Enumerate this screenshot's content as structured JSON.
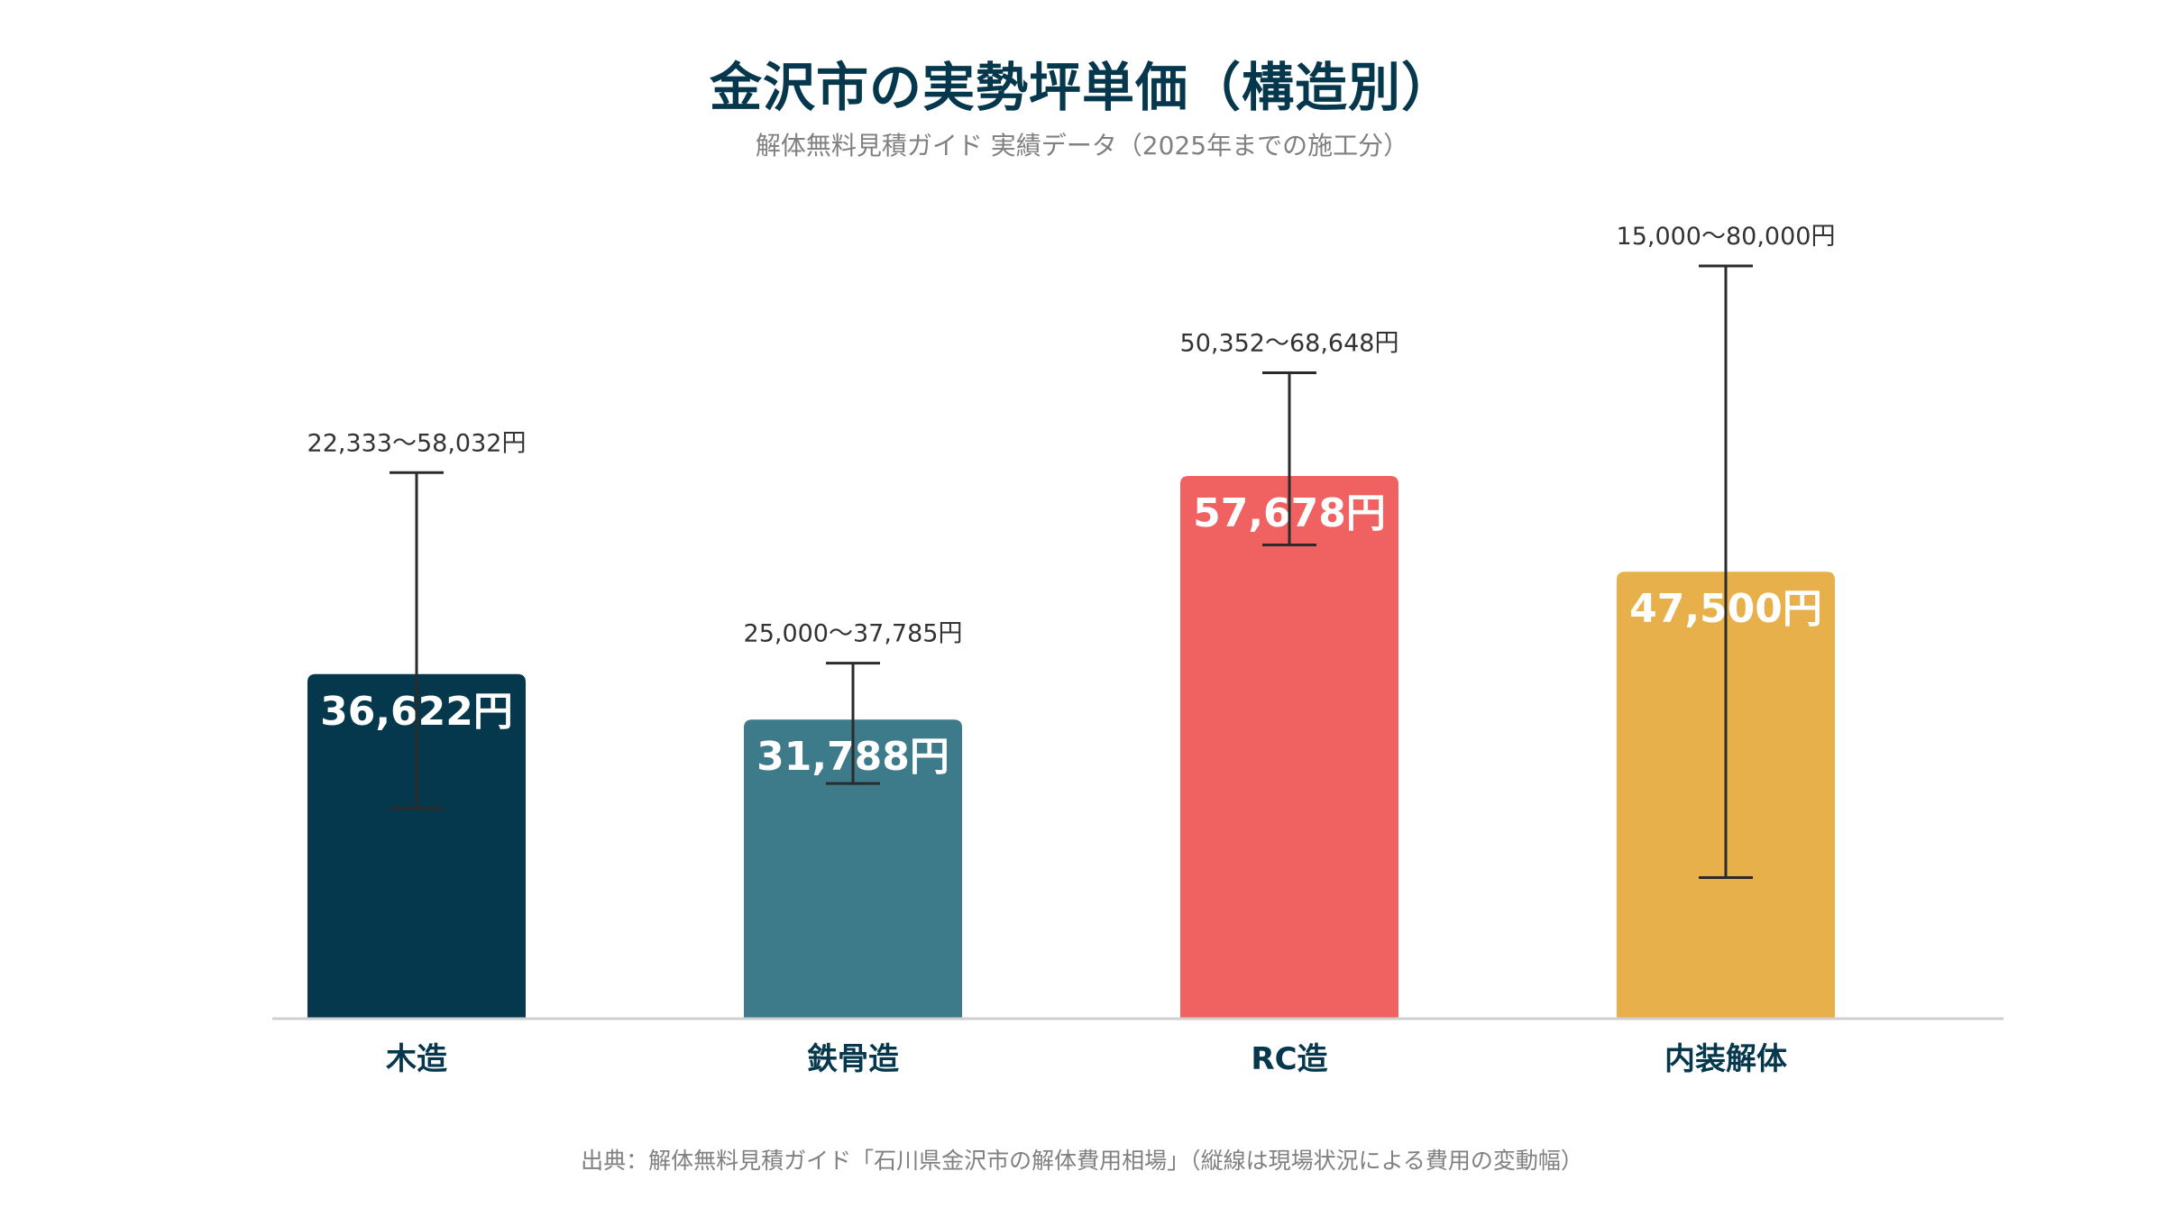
{
  "title": "金沢市の実勢坪単価（構造別）",
  "subtitle": "解体無料見積ガイド 実績データ（2025年までの施工分）",
  "source": "出典：解体無料見積ガイド「石川県金沢市の解体費用相場」（縦線は現場状況による費用の変動幅）",
  "chart_data": {
    "type": "bar",
    "categories": [
      "木造",
      "鉄骨造",
      "RC造",
      "内装解体"
    ],
    "values": [
      36622,
      31788,
      57678,
      47500
    ],
    "value_labels": [
      "36,622円",
      "31,788円",
      "57,678円",
      "47,500円"
    ],
    "ranges": [
      [
        22333,
        58032
      ],
      [
        25000,
        37785
      ],
      [
        50352,
        68648
      ],
      [
        15000,
        80000
      ]
    ],
    "range_labels": [
      "22,333〜58,032円",
      "25,000〜37,785円",
      "50,352〜68,648円",
      "15,000〜80,000円"
    ],
    "colors": [
      "#06384d",
      "#3d7a8a",
      "#f06262",
      "#e8b04b"
    ],
    "ylim": [
      0,
      80000
    ],
    "grid": false,
    "xlabel": "",
    "ylabel": ""
  }
}
